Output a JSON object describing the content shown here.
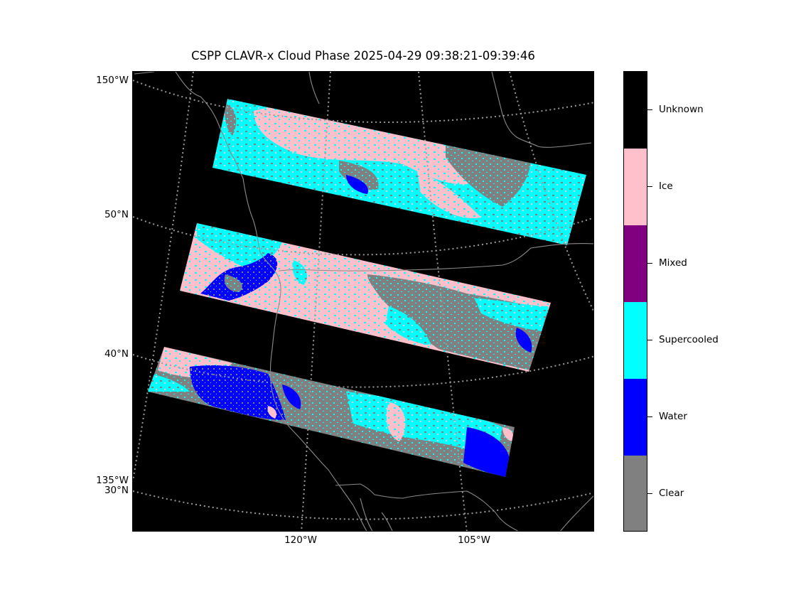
{
  "title": "CSPP CLAVR-x Cloud Phase 2025-04-29 09:38:21-09:39:46",
  "map": {
    "lat_labels": [
      "150°W",
      "50°N",
      "40°N",
      "135°W",
      "30°N"
    ],
    "lon_labels": [
      "120°W",
      "105°W"
    ]
  },
  "colorbar": {
    "categories": [
      {
        "label": "Unknown",
        "color": "#000000"
      },
      {
        "label": "Ice",
        "color": "#ffc0cb"
      },
      {
        "label": "Mixed",
        "color": "#800080"
      },
      {
        "label": "Supercooled",
        "color": "#00ffff"
      },
      {
        "label": "Water",
        "color": "#0000ff"
      },
      {
        "label": "Clear",
        "color": "#808080"
      }
    ]
  },
  "colors": {
    "background": "#000000",
    "coastline": "#8a8a8a",
    "gridline": "#9a9a9a"
  }
}
